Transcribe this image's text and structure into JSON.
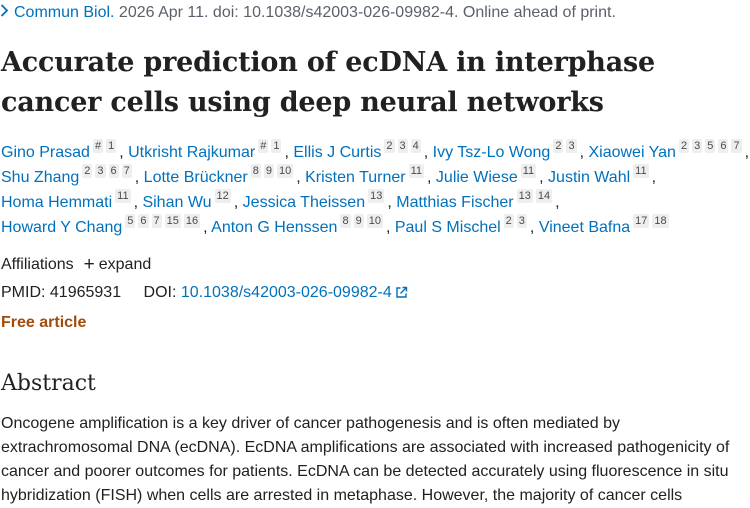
{
  "citation": {
    "journal": "Commun Biol.",
    "details": " 2026 Apr 11. doi: 10.1038/s42003-026-09982-4. Online ahead of print."
  },
  "title": "Accurate prediction of ecDNA in interphase cancer cells using deep neural networks",
  "authors": [
    {
      "name": "Gino Prasad",
      "sups": [
        "#",
        "1"
      ]
    },
    {
      "name": "Utkrisht Rajkumar",
      "sups": [
        "#",
        "1"
      ]
    },
    {
      "name": "Ellis J Curtis",
      "sups": [
        "2",
        "3",
        "4"
      ]
    },
    {
      "name": "Ivy Tsz-Lo Wong",
      "sups": [
        "2",
        "3"
      ]
    },
    {
      "name": "Xiaowei Yan",
      "sups": [
        "2",
        "3",
        "5",
        "6",
        "7"
      ]
    },
    {
      "name": "Shu Zhang",
      "sups": [
        "2",
        "3",
        "6",
        "7"
      ]
    },
    {
      "name": "Lotte Brückner",
      "sups": [
        "8",
        "9",
        "10"
      ]
    },
    {
      "name": "Kristen Turner",
      "sups": [
        "11"
      ]
    },
    {
      "name": "Julie Wiese",
      "sups": [
        "11"
      ]
    },
    {
      "name": "Justin Wahl",
      "sups": [
        "11"
      ]
    },
    {
      "name": "Homa Hemmati",
      "sups": [
        "11"
      ]
    },
    {
      "name": "Sihan Wu",
      "sups": [
        "12"
      ]
    },
    {
      "name": "Jessica Theissen",
      "sups": [
        "13"
      ]
    },
    {
      "name": "Matthias Fischer",
      "sups": [
        "13",
        "14"
      ]
    },
    {
      "name": "Howard Y Chang",
      "sups": [
        "5",
        "6",
        "7",
        "15",
        "16"
      ]
    },
    {
      "name": "Anton G Henssen",
      "sups": [
        "8",
        "9",
        "10"
      ]
    },
    {
      "name": "Paul S Mischel",
      "sups": [
        "2",
        "3"
      ]
    },
    {
      "name": "Vineet Bafna",
      "sups": [
        "17",
        "18"
      ]
    }
  ],
  "affiliations": {
    "label": "Affiliations",
    "expand": "expand"
  },
  "identifiers": {
    "pmid_label": "PMID:",
    "pmid": "41965931",
    "doi_label": "DOI:",
    "doi": "10.1038/s42003-026-09982-4"
  },
  "free_article": "Free article",
  "abstract": {
    "heading": "Abstract",
    "text": "Oncogene amplification is a key driver of cancer pathogenesis and is often mediated by extrachromosomal DNA (ecDNA). EcDNA amplifications are associated with increased pathogenicity of cancer and poorer outcomes for patients. EcDNA can be detected accurately using fluorescence in situ hybridization (FISH) when cells are arrested in metaphase. However, the majority of cancer cells"
  },
  "icons": {
    "chevron": "chevron-right-icon",
    "plus": "plus-icon",
    "external": "external-link-icon"
  }
}
